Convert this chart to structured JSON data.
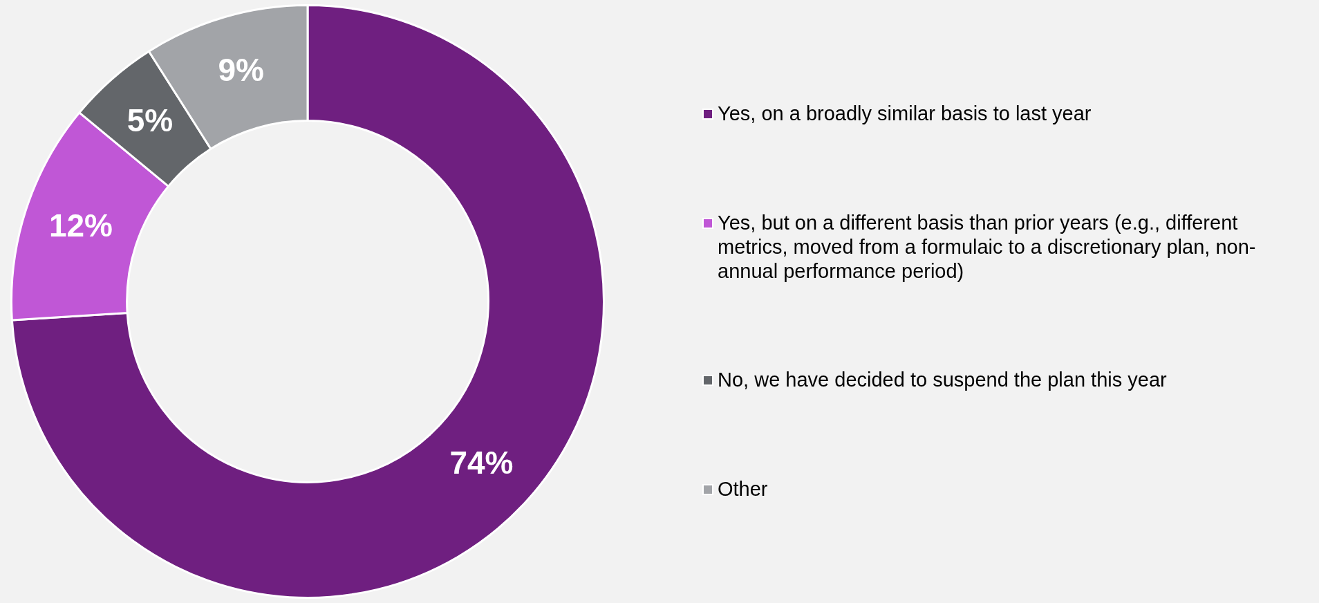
{
  "chart_data": {
    "type": "donut",
    "categories": [
      "Yes, on a broadly similar basis to last year",
      "Yes, but on a different basis than prior years (e.g., different metrics, moved from a formulaic to a discretionary plan, non-annual performance period)",
      "No, we have decided to suspend the plan this year",
      "Other"
    ],
    "values": [
      74,
      12,
      5,
      9
    ],
    "colors": [
      "#6f1f80",
      "#c057d6",
      "#63666a",
      "#a2a4a8"
    ],
    "value_labels": [
      "74%",
      "12%",
      "5%",
      "9%"
    ],
    "legend": "right"
  }
}
